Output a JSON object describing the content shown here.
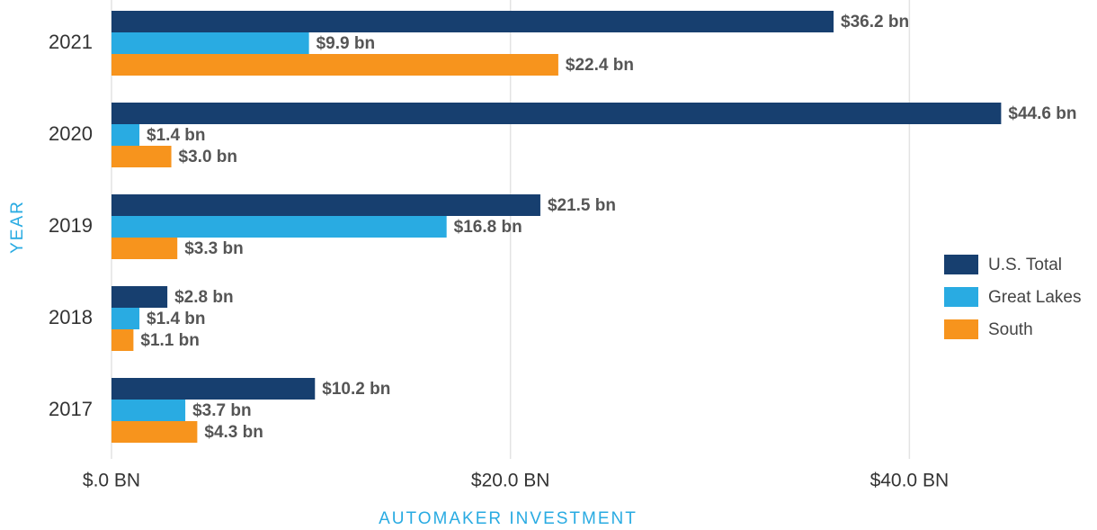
{
  "chart_data": {
    "type": "hbar",
    "categories": [
      "2021",
      "2020",
      "2019",
      "2018",
      "2017"
    ],
    "series": [
      {
        "name": "U.S. Total",
        "color": "#173f6f",
        "values": [
          36.2,
          44.6,
          21.5,
          2.8,
          10.2
        ],
        "value_labels": [
          "$36.2 bn",
          "$44.6 bn",
          "$21.5 bn",
          "$2.8 bn",
          "$10.2 bn"
        ]
      },
      {
        "name": "Great Lakes",
        "color": "#29abe2",
        "values": [
          9.9,
          1.4,
          16.8,
          1.4,
          3.7
        ],
        "value_labels": [
          "$9.9 bn",
          "$1.4 bn",
          "$16.8 bn",
          "$1.4 bn",
          "$3.7 bn"
        ]
      },
      {
        "name": "South",
        "color": "#f7941d",
        "values": [
          22.4,
          3.0,
          3.3,
          1.1,
          4.3
        ],
        "value_labels": [
          "$22.4 bn",
          "$3.0 bn",
          "$3.3 bn",
          "$1.1 bn",
          "$4.3 bn"
        ]
      }
    ],
    "xlabel": "AUTOMAKER INVESTMENT",
    "ylabel": "YEAR",
    "xlim": [
      0,
      49
    ],
    "xticks": [
      {
        "value": 0,
        "label": "$.0 BN"
      },
      {
        "value": 20,
        "label": "$20.0 BN"
      },
      {
        "value": 40,
        "label": "$40.0 BN"
      }
    ],
    "grid": true,
    "legend": "right"
  }
}
